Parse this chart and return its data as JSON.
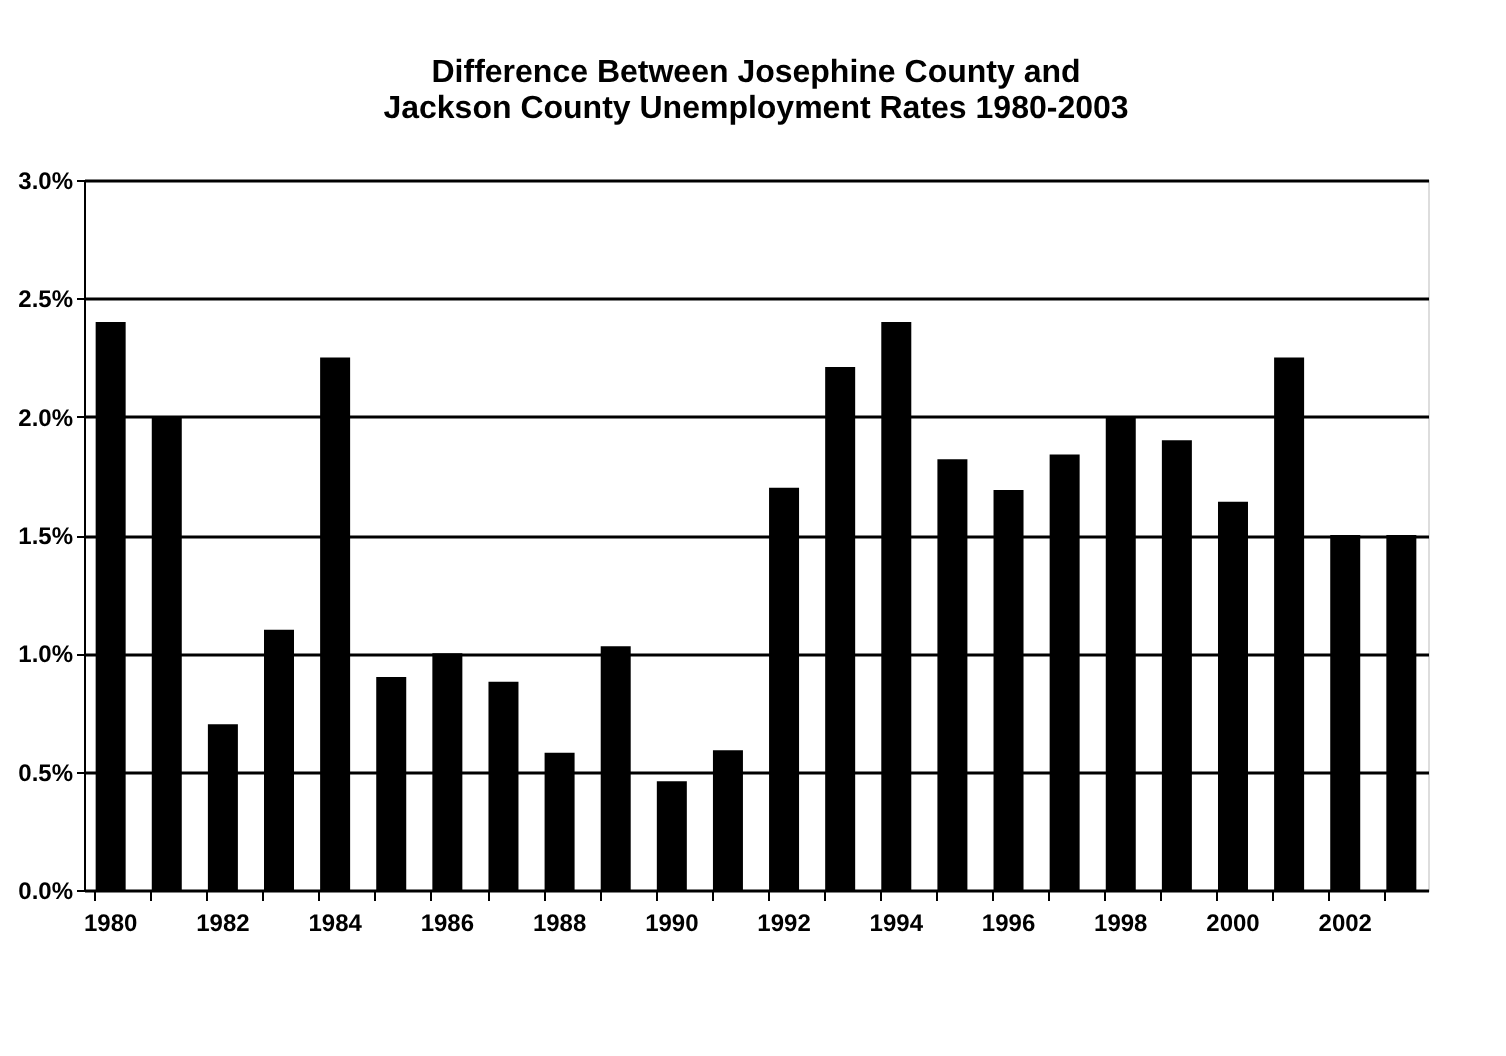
{
  "chart_data": {
    "type": "bar",
    "title": "Difference Between Josephine County and Jackson County Unemployment Rates 1980-2003",
    "categories": [
      "1980",
      null,
      "1982",
      null,
      "1984",
      null,
      "1986",
      null,
      "1988",
      null,
      "1990",
      null,
      "1992",
      null,
      "1994",
      null,
      "1996",
      null,
      "1998",
      null,
      "2000",
      null,
      "2002",
      null
    ],
    "values": [
      2.4,
      2.0,
      0.7,
      1.1,
      2.25,
      0.9,
      1.0,
      0.88,
      0.58,
      1.03,
      0.46,
      0.59,
      1.7,
      2.21,
      2.4,
      1.82,
      1.69,
      1.84,
      2.0,
      1.9,
      1.64,
      2.25,
      1.5,
      1.5
    ],
    "color": "#000000",
    "ylim": [
      0,
      3.0
    ],
    "yticks": [
      {
        "value": 0,
        "label": "0.0%"
      },
      {
        "value": 0.5,
        "label": "0.5%"
      },
      {
        "value": 1.0,
        "label": "1.0%"
      },
      {
        "value": 1.5,
        "label": "1.5%"
      },
      {
        "value": 2.0,
        "label": "2.0%"
      },
      {
        "value": 2.5,
        "label": "2.5%"
      },
      {
        "value": 3.0,
        "label": "3.0%"
      }
    ],
    "grid": "y"
  }
}
